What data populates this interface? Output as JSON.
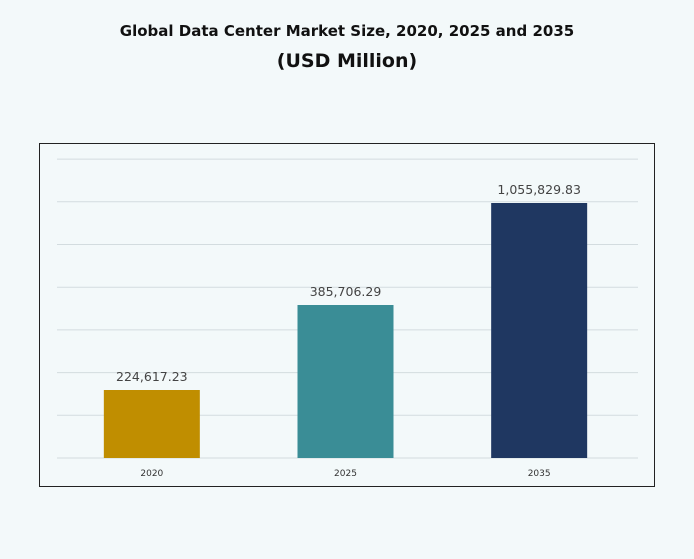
{
  "chart_data": {
    "type": "bar",
    "title": "Global Data Center Market Size, 2020, 2025 and 2035",
    "subtitle": "(USD Million)",
    "categories": [
      "2020",
      "2025",
      "2035"
    ],
    "values": [
      224617.23,
      385706.29,
      1055829.83
    ],
    "data_labels": [
      "224,617.23",
      "385,706.29",
      "1,055,829.83"
    ],
    "colors": [
      "#c08e00",
      "#3a8d96",
      "#1f3761"
    ],
    "grid": true,
    "legend": "none",
    "xlabel": "",
    "ylabel": ""
  }
}
